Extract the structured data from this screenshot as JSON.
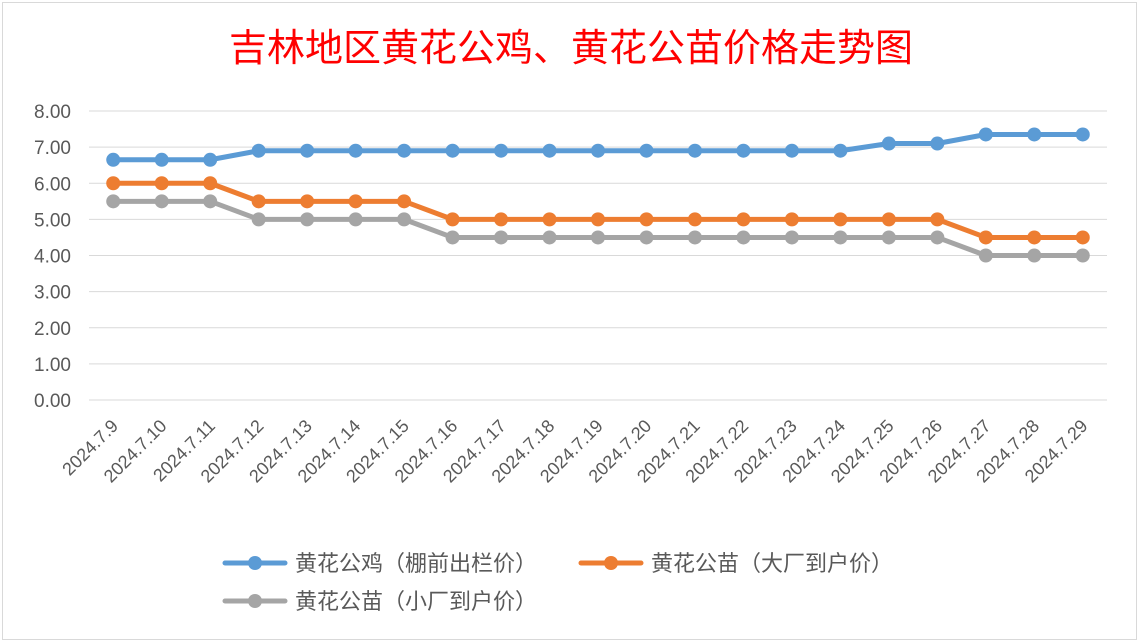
{
  "chart_data": {
    "type": "line",
    "title": "吉林地区黄花公鸡、黄花公苗价格走势图",
    "xlabel": "",
    "ylabel": "",
    "ylim": [
      0,
      8
    ],
    "y_ticks": [
      "0.00",
      "1.00",
      "2.00",
      "3.00",
      "4.00",
      "5.00",
      "6.00",
      "7.00",
      "8.00"
    ],
    "grid": true,
    "legend_position": "bottom",
    "categories": [
      "2024.7.9",
      "2024.7.10",
      "2024.7.11",
      "2024.7.12",
      "2024.7.13",
      "2024.7.14",
      "2024.7.15",
      "2024.7.16",
      "2024.7.17",
      "2024.7.18",
      "2024.7.19",
      "2024.7.20",
      "2024.7.21",
      "2024.7.22",
      "2024.7.23",
      "2024.7.24",
      "2024.7.25",
      "2024.7.26",
      "2024.7.27",
      "2024.7.28",
      "2024.7.29"
    ],
    "series": [
      {
        "name": "黄花公鸡（棚前出栏价）",
        "color": "#5b9bd5",
        "values": [
          6.65,
          6.65,
          6.65,
          6.9,
          6.9,
          6.9,
          6.9,
          6.9,
          6.9,
          6.9,
          6.9,
          6.9,
          6.9,
          6.9,
          6.9,
          6.9,
          7.1,
          7.1,
          7.35,
          7.35,
          7.35
        ]
      },
      {
        "name": "黄花公苗（大厂到户价）",
        "color": "#ed7d31",
        "values": [
          6.0,
          6.0,
          6.0,
          5.5,
          5.5,
          5.5,
          5.5,
          5.0,
          5.0,
          5.0,
          5.0,
          5.0,
          5.0,
          5.0,
          5.0,
          5.0,
          5.0,
          5.0,
          4.5,
          4.5,
          4.5
        ]
      },
      {
        "name": "黄花公苗（小厂到户价）",
        "color": "#a5a5a5",
        "values": [
          5.5,
          5.5,
          5.5,
          5.0,
          5.0,
          5.0,
          5.0,
          4.5,
          4.5,
          4.5,
          4.5,
          4.5,
          4.5,
          4.5,
          4.5,
          4.5,
          4.5,
          4.5,
          4.0,
          4.0,
          4.0
        ]
      }
    ],
    "title_color": "#ff0000",
    "grid_color": "#d9d9d9",
    "tick_color": "#595959"
  }
}
